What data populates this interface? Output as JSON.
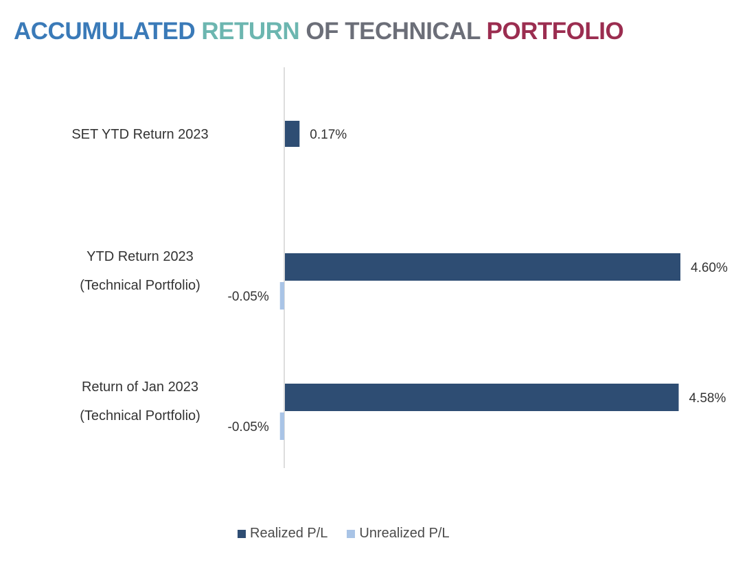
{
  "title": {
    "part1": "ACCUMULATED ",
    "part2": "RETURN ",
    "part3": "OF TECHNICAL ",
    "part4": "PORTFOLIO"
  },
  "colors": {
    "realized": "#2e4d73",
    "unrealized": "#a9c4e6",
    "axis": "#bbbbbb"
  },
  "chart_data": {
    "type": "bar",
    "orientation": "horizontal",
    "categories": [
      [
        "SET YTD Return 2023"
      ],
      [
        "YTD Return 2023",
        "(Technical Portfolio)"
      ],
      [
        "Return of Jan 2023",
        "(Technical Portfolio)"
      ]
    ],
    "series": [
      {
        "name": "Realized P/L",
        "values": [
          0.17,
          4.6,
          4.58
        ],
        "labels": [
          "0.17%",
          "4.60%",
          "4.58%"
        ]
      },
      {
        "name": "Unrealized P/L",
        "values": [
          null,
          -0.05,
          -0.05
        ],
        "labels": [
          "",
          "-0.05%",
          "-0.05%"
        ]
      }
    ],
    "unit": "%",
    "xlim": [
      -0.05,
      4.6
    ],
    "legend_position": "bottom"
  }
}
